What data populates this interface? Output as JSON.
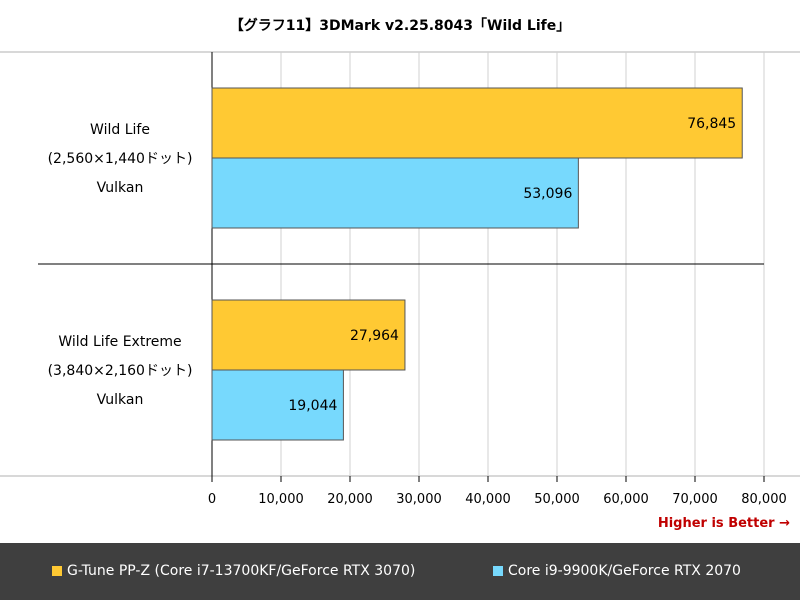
{
  "chart_data": {
    "type": "bar",
    "orientation": "horizontal",
    "title": "【グラフ11】3DMark v2.25.8043「Wild Life」",
    "categories": [
      [
        "Wild Life",
        "(2,560×1,440ドット)",
        "Vulkan"
      ],
      [
        "Wild Life Extreme",
        "(3,840×2,160ドット)",
        "Vulkan"
      ]
    ],
    "series": [
      {
        "name": "G-Tune PP-Z (Core i7-13700KF/GeForce RTX 3070)",
        "color": "#ffc933",
        "values": [
          76845,
          27964
        ],
        "labels": [
          "76,845",
          "27,964"
        ]
      },
      {
        "name": "Core i9-9900K/GeForce RTX 2070",
        "color": "#77d9fd",
        "values": [
          53096,
          19044
        ],
        "labels": [
          "53,096",
          "19,044"
        ]
      }
    ],
    "xlim": [
      0,
      80000
    ],
    "xticks": [
      0,
      10000,
      20000,
      30000,
      40000,
      50000,
      60000,
      70000,
      80000
    ],
    "xtick_labels": [
      "0",
      "10,000",
      "20,000",
      "30,000",
      "40,000",
      "50,000",
      "60,000",
      "70,000",
      "80,000"
    ],
    "grid": true,
    "legend_position": "bottom",
    "annotation": "Higher is Better →"
  }
}
